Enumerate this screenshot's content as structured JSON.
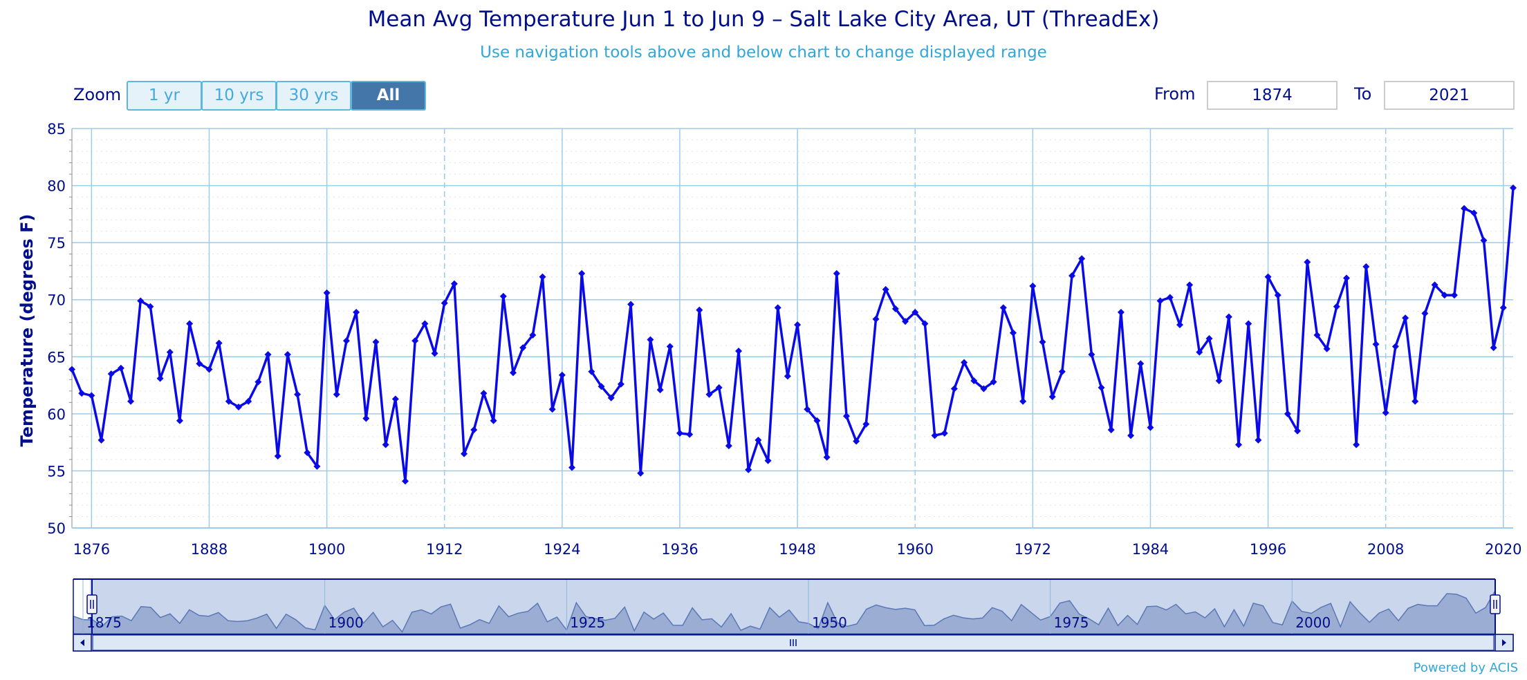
{
  "chart": {
    "title": "Mean Avg Temperature Jun 1 to Jun 9 – Salt Lake City Area, UT (ThreadEx)",
    "subtitle": "Use navigation tools above and below chart to change displayed range"
  },
  "zoom": {
    "label": "Zoom",
    "buttons": [
      "1 yr",
      "10 yrs",
      "30 yrs",
      "All"
    ],
    "active": "All"
  },
  "range": {
    "from_label": "From",
    "from_value": "1874",
    "to_label": "To",
    "to_value": "2021"
  },
  "footer": {
    "powered_by": "Powered by ACIS"
  },
  "colors": {
    "title": "#000e8b",
    "subtitle": "#2fa6dc",
    "series": "#0a0ae6",
    "grid": "#9cccec",
    "navigator_fill": "#c9d6ec",
    "navigator_series": "#8aa0cf"
  },
  "chart_data": {
    "type": "line",
    "title": "Mean Avg Temperature Jun 1 to Jun 9 – Salt Lake City Area, UT (ThreadEx)",
    "ylabel": "Temperature (degrees F)",
    "xlabel": "",
    "ylim": [
      50,
      85
    ],
    "yticks": [
      50,
      55,
      60,
      65,
      70,
      75,
      80,
      85
    ],
    "xlim": [
      1874,
      2021
    ],
    "xticks": [
      1876,
      1888,
      1900,
      1912,
      1924,
      1936,
      1948,
      1960,
      1972,
      1984,
      1996,
      2008,
      2020
    ],
    "grid": true,
    "series": [
      {
        "name": "Mean Avg Temperature",
        "x": [
          1874,
          1875,
          1876,
          1877,
          1878,
          1879,
          1880,
          1881,
          1882,
          1883,
          1884,
          1885,
          1886,
          1887,
          1888,
          1889,
          1890,
          1891,
          1892,
          1893,
          1894,
          1895,
          1896,
          1897,
          1898,
          1899,
          1900,
          1901,
          1902,
          1903,
          1904,
          1905,
          1906,
          1907,
          1908,
          1909,
          1910,
          1911,
          1912,
          1913,
          1914,
          1915,
          1916,
          1917,
          1918,
          1919,
          1920,
          1921,
          1922,
          1923,
          1924,
          1925,
          1926,
          1927,
          1928,
          1929,
          1930,
          1931,
          1932,
          1933,
          1934,
          1935,
          1936,
          1937,
          1938,
          1939,
          1940,
          1941,
          1942,
          1943,
          1944,
          1945,
          1946,
          1947,
          1948,
          1949,
          1950,
          1951,
          1952,
          1953,
          1954,
          1955,
          1956,
          1957,
          1958,
          1959,
          1960,
          1961,
          1962,
          1963,
          1964,
          1965,
          1966,
          1967,
          1968,
          1969,
          1970,
          1971,
          1972,
          1973,
          1974,
          1975,
          1976,
          1977,
          1978,
          1979,
          1980,
          1981,
          1982,
          1983,
          1984,
          1985,
          1986,
          1987,
          1988,
          1989,
          1990,
          1991,
          1992,
          1993,
          1994,
          1995,
          1996,
          1997,
          1998,
          1999,
          2000,
          2001,
          2002,
          2003,
          2004,
          2005,
          2006,
          2007,
          2008,
          2009,
          2010,
          2011,
          2012,
          2013,
          2014,
          2015,
          2016,
          2017,
          2018,
          2019,
          2020,
          2021
        ],
        "values": [
          63.9,
          61.8,
          61.6,
          57.7,
          63.5,
          64.0,
          61.1,
          69.9,
          69.4,
          63.1,
          65.4,
          59.4,
          67.9,
          64.4,
          63.9,
          66.2,
          61.1,
          60.6,
          61.1,
          62.8,
          65.2,
          56.3,
          65.2,
          61.7,
          56.6,
          55.4,
          70.6,
          61.7,
          66.4,
          68.9,
          59.6,
          66.3,
          57.3,
          61.3,
          54.1,
          66.4,
          67.9,
          65.3,
          69.7,
          71.4,
          56.5,
          58.6,
          61.8,
          59.4,
          70.3,
          63.6,
          65.8,
          66.9,
          72.0,
          60.4,
          63.4,
          55.3,
          72.3,
          63.7,
          62.4,
          61.4,
          62.6,
          69.6,
          54.8,
          66.5,
          62.1,
          65.9,
          58.3,
          58.2,
          69.1,
          61.7,
          62.3,
          57.2,
          65.5,
          55.1,
          57.7,
          55.9,
          69.3,
          63.3,
          67.8,
          60.4,
          59.4,
          56.2,
          72.3,
          59.8,
          57.6,
          59.1,
          68.3,
          70.9,
          69.2,
          68.1,
          68.9,
          67.9,
          58.1,
          58.3,
          62.2,
          64.5,
          62.9,
          62.2,
          62.8,
          69.3,
          67.1,
          61.1,
          71.2,
          66.3,
          61.5,
          63.7,
          72.1,
          73.6,
          65.2,
          62.3,
          58.6,
          68.9,
          58.1,
          64.4,
          58.8,
          69.9,
          70.2,
          67.8,
          71.3,
          65.4,
          66.6,
          62.9,
          68.5,
          57.3,
          67.9,
          57.7,
          72.0,
          70.4,
          60.0,
          58.5,
          73.3,
          66.9,
          65.7,
          69.4,
          71.9,
          57.3,
          72.9,
          66.1,
          60.1,
          65.9,
          68.4,
          61.1,
          68.8,
          71.3,
          70.4,
          70.4,
          78.0,
          77.6,
          75.2,
          65.8,
          69.3,
          79.8
        ]
      }
    ],
    "navigator": {
      "xticks": [
        1875,
        1900,
        1925,
        1950,
        1975,
        2000
      ],
      "scrollbar_icon": "scroll-grip-icon"
    }
  }
}
